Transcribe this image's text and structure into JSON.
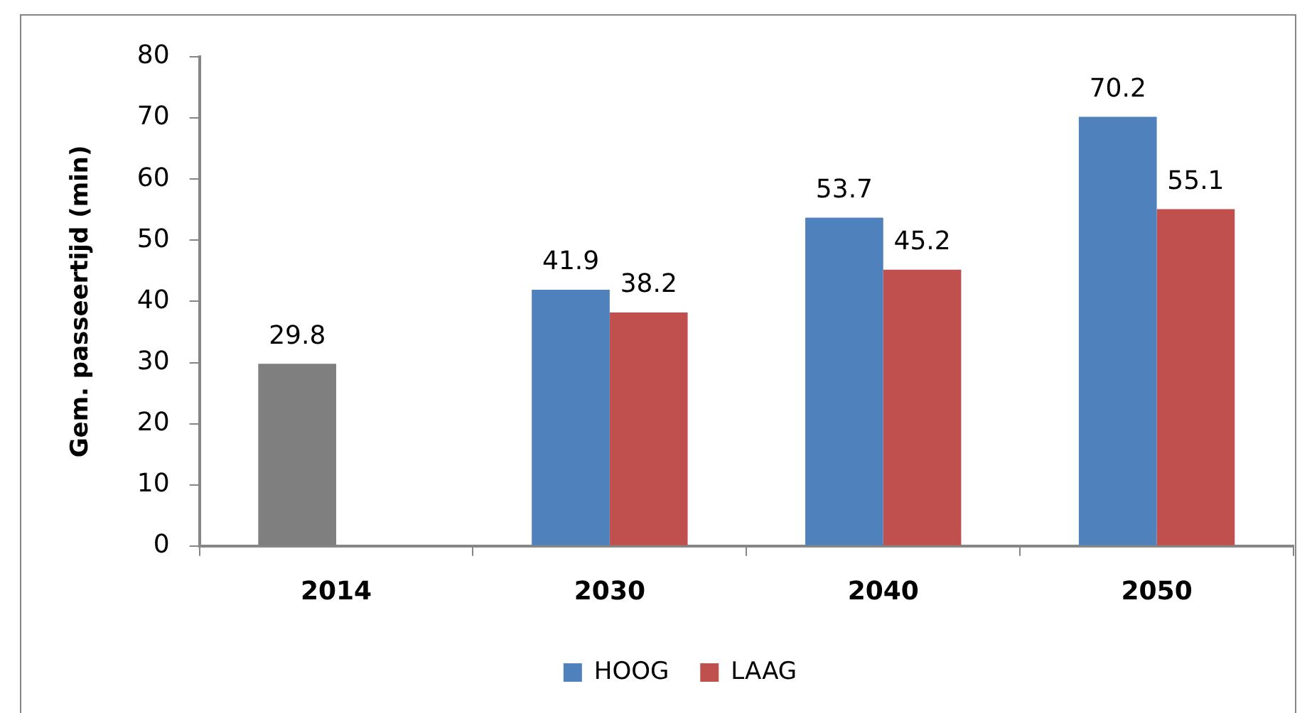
{
  "chart_data": {
    "type": "bar",
    "ylabel": "Gem. passeertijd (min)",
    "categories": [
      "2014",
      "2030",
      "2040",
      "2050"
    ],
    "series": [
      {
        "name": "HOOG",
        "color": "#4f81bd",
        "colors": [
          "#7f7f7f",
          "#4f81bd",
          "#4f81bd",
          "#4f81bd"
        ],
        "values": [
          29.8,
          41.9,
          53.7,
          70.2
        ]
      },
      {
        "name": "LAAG",
        "color": "#c0504d",
        "values": [
          null,
          38.2,
          45.2,
          55.1
        ]
      }
    ],
    "ylim": [
      0,
      80
    ],
    "yticks": [
      0,
      10,
      20,
      30,
      40,
      50,
      60,
      70,
      80
    ],
    "data_labels": true,
    "grid": false,
    "legend": "bottom"
  }
}
